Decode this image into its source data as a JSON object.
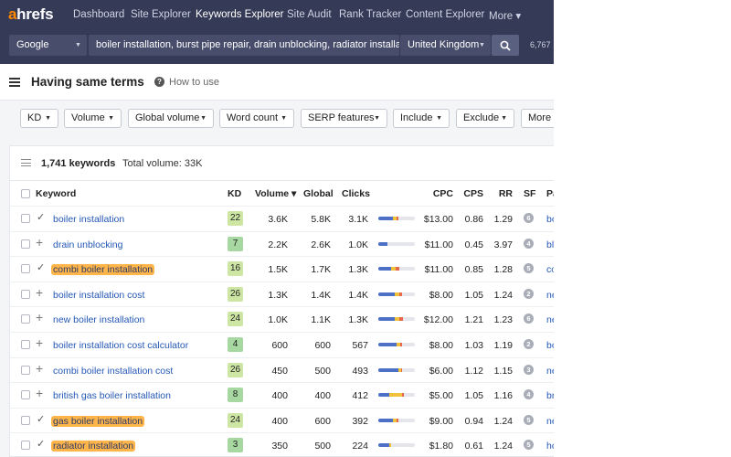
{
  "app": {
    "logo_first": "a",
    "logo_rest": "hrefs"
  },
  "nav": {
    "items": [
      "Dashboard",
      "Site Explorer",
      "Keywords Explorer",
      "Site Audit",
      "Rank Tracker",
      "Content Explorer",
      "More ▾"
    ]
  },
  "search": {
    "engine": "Google",
    "keywords": "boiler installation, burst pipe repair, drain unblocking, radiator installation",
    "country": "United Kingdom",
    "credits": "6,767"
  },
  "page": {
    "title": "Having same terms",
    "help_link": "How to use"
  },
  "filters": [
    "KD",
    "Volume",
    "Global volume",
    "Word count",
    "SERP features",
    "Include",
    "Exclude",
    "More"
  ],
  "summary": {
    "keyword_count": "1,741 keywords",
    "total_volume": "Total volume: 33K"
  },
  "columns": {
    "keyword": "Keyword",
    "kd": "KD",
    "volume": "Volume ▾",
    "global": "Global",
    "clicks": "Clicks",
    "cpc": "CPC",
    "cps": "CPS",
    "rr": "RR",
    "sf": "SF",
    "parent": "Pa"
  },
  "rows": [
    {
      "keyword": "boiler installation",
      "kd": "22",
      "volume": "3.6K",
      "global": "5.8K",
      "clicks": "3.1K",
      "cpc": "$13.00",
      "cps": "0.86",
      "rr": "1.29",
      "sf": "6",
      "parent": "bo",
      "added": true,
      "hl": false,
      "kd_color": "#cde6a4",
      "click_split": [
        0.4,
        0.1,
        0.05
      ]
    },
    {
      "keyword": "drain unblocking",
      "kd": "7",
      "volume": "2.2K",
      "global": "2.6K",
      "clicks": "1.0K",
      "cpc": "$11.00",
      "cps": "0.45",
      "rr": "3.97",
      "sf": "4",
      "parent": "bl",
      "added": false,
      "hl": false,
      "kd_color": "#a7d8a2",
      "click_split": [
        0.25,
        0.0,
        0.0
      ]
    },
    {
      "keyword": "combi boiler installation",
      "kd": "16",
      "volume": "1.5K",
      "global": "1.7K",
      "clicks": "1.3K",
      "cpc": "$11.00",
      "cps": "0.85",
      "rr": "1.28",
      "sf": "5",
      "parent": "co",
      "added": true,
      "hl": true,
      "kd_color": "#cde6a4",
      "click_split": [
        0.35,
        0.12,
        0.1
      ]
    },
    {
      "keyword": "boiler installation cost",
      "kd": "26",
      "volume": "1.3K",
      "global": "1.4K",
      "clicks": "1.4K",
      "cpc": "$8.00",
      "cps": "1.05",
      "rr": "1.24",
      "sf": "2",
      "parent": "ne",
      "added": false,
      "hl": false,
      "kd_color": "#cde6a4",
      "click_split": [
        0.45,
        0.12,
        0.08
      ]
    },
    {
      "keyword": "new boiler installation",
      "kd": "24",
      "volume": "1.0K",
      "global": "1.1K",
      "clicks": "1.3K",
      "cpc": "$12.00",
      "cps": "1.21",
      "rr": "1.23",
      "sf": "6",
      "parent": "ne",
      "added": false,
      "hl": false,
      "kd_color": "#cde6a4",
      "click_split": [
        0.45,
        0.12,
        0.1
      ]
    },
    {
      "keyword": "boiler installation cost calculator",
      "kd": "4",
      "volume": "600",
      "global": "600",
      "clicks": "567",
      "cpc": "$8.00",
      "cps": "1.03",
      "rr": "1.19",
      "sf": "2",
      "parent": "bo",
      "added": false,
      "hl": false,
      "kd_color": "#a7d8a2",
      "click_split": [
        0.5,
        0.1,
        0.05
      ]
    },
    {
      "keyword": "combi boiler installation cost",
      "kd": "26",
      "volume": "450",
      "global": "500",
      "clicks": "493",
      "cpc": "$6.00",
      "cps": "1.12",
      "rr": "1.15",
      "sf": "3",
      "parent": "ne",
      "added": false,
      "hl": false,
      "kd_color": "#cde6a4",
      "click_split": [
        0.55,
        0.08,
        0.02
      ]
    },
    {
      "keyword": "british gas boiler installation",
      "kd": "8",
      "volume": "400",
      "global": "400",
      "clicks": "412",
      "cpc": "$5.00",
      "cps": "1.05",
      "rr": "1.16",
      "sf": "4",
      "parent": "br",
      "added": false,
      "hl": false,
      "kd_color": "#a7d8a2",
      "click_split": [
        0.3,
        0.35,
        0.05
      ]
    },
    {
      "keyword": "gas boiler installation",
      "kd": "24",
      "volume": "400",
      "global": "600",
      "clicks": "392",
      "cpc": "$9.00",
      "cps": "0.94",
      "rr": "1.24",
      "sf": "5",
      "parent": "ne",
      "added": true,
      "hl": true,
      "kd_color": "#cde6a4",
      "click_split": [
        0.4,
        0.1,
        0.05
      ]
    },
    {
      "keyword": "radiator installation",
      "kd": "3",
      "volume": "350",
      "global": "500",
      "clicks": "224",
      "cpc": "$1.80",
      "cps": "0.61",
      "rr": "1.24",
      "sf": "5",
      "parent": "ho",
      "added": true,
      "hl": true,
      "kd_color": "#a7d8a2",
      "click_split": [
        0.3,
        0.05,
        0.0
      ]
    }
  ],
  "colors": {
    "nav_bg": "#353b56",
    "brand": "#ff8800",
    "link": "#2457b5",
    "highlight": "#ffb54a",
    "bar_paid": "#f0c23b",
    "bar_organic": "#4b70c5",
    "bar_other": "#e8684a"
  }
}
